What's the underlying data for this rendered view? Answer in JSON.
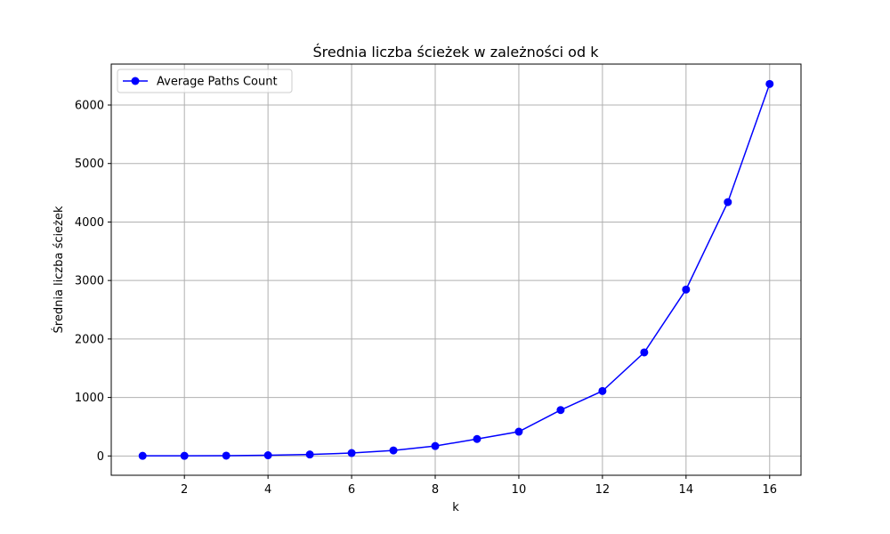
{
  "chart_data": {
    "type": "line",
    "title": "Średnia liczba ścieżek w zależności od k",
    "xlabel": "k",
    "ylabel": "Średnia liczba ścieżek",
    "xlim": [
      0.25,
      16.75
    ],
    "ylim": [
      -330,
      6700
    ],
    "xticks": [
      2,
      4,
      6,
      8,
      10,
      12,
      14,
      16
    ],
    "yticks": [
      0,
      1000,
      2000,
      3000,
      4000,
      5000,
      6000
    ],
    "grid": true,
    "legend_position": "top-left",
    "x": [
      1,
      2,
      3,
      4,
      5,
      6,
      7,
      8,
      9,
      10,
      11,
      12,
      13,
      14,
      15,
      16
    ],
    "series": [
      {
        "name": "Average Paths Count",
        "color": "#0000ff",
        "marker": "circle",
        "values": [
          2,
          2,
          5,
          12,
          25,
          50,
          95,
          170,
          290,
          415,
          785,
          1110,
          1770,
          2845,
          4340,
          6360
        ]
      }
    ]
  }
}
